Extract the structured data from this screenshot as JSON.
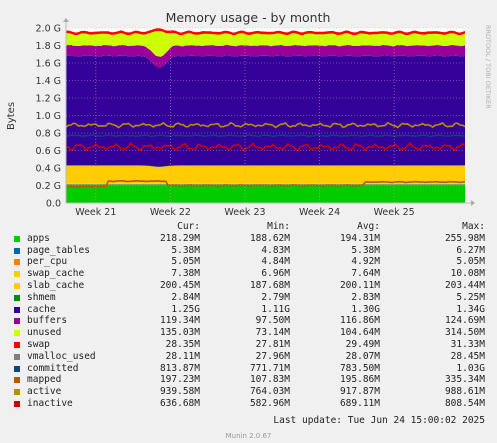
{
  "chart_data": {
    "type": "area",
    "title": "Memory usage - by month",
    "ylabel": "Bytes",
    "side_label": "RRDTOOL / TOBI OETIKER",
    "ylim": [
      0,
      2.0
    ],
    "y_unit": "G",
    "y_ticks": [
      "0.0",
      "0.2 G",
      "0.4 G",
      "0.6 G",
      "0.8 G",
      "1.0 G",
      "1.2 G",
      "1.4 G",
      "1.6 G",
      "1.8 G",
      "2.0 G"
    ],
    "x_ticks": [
      "Week 21",
      "Week 22",
      "Week 23",
      "Week 24",
      "Week 25"
    ],
    "grid": true,
    "stacked_series_gb": [
      {
        "name": "apps",
        "color": "#00cc00",
        "value": 0.21
      },
      {
        "name": "page_tables",
        "color": "#0066b3",
        "value": 0.005
      },
      {
        "name": "per_cpu",
        "color": "#ff8000",
        "value": 0.005
      },
      {
        "name": "swap_cache",
        "color": "#ffcc00",
        "value": 0.007
      },
      {
        "name": "slab_cache",
        "color": "#ffcc00",
        "value": 0.2
      },
      {
        "name": "shmem",
        "color": "#008f00",
        "value": 0.003
      },
      {
        "name": "cache",
        "color": "#330099",
        "value": 1.25
      },
      {
        "name": "buffers",
        "color": "#990099",
        "value": 0.12
      },
      {
        "name": "unused",
        "color": "#ccff00",
        "value": 0.13
      },
      {
        "name": "swap",
        "color": "#ff0000",
        "value": 0.03
      }
    ],
    "line_series_gb": [
      {
        "name": "committed",
        "color": "#00487d",
        "value": 0.81
      },
      {
        "name": "mapped",
        "color": "#b35a00",
        "value": 0.2
      },
      {
        "name": "active",
        "color": "#b38f00",
        "value": 0.92
      },
      {
        "name": "inactive",
        "color": "#cc0000",
        "value": 0.64
      }
    ],
    "events": {
      "unused_dip": {
        "x_week": 21.85,
        "unused_gb": 0.3,
        "slab_gb": 0.15
      },
      "mapped_steps_at_week": [
        21.15,
        21.95,
        24.6
      ]
    }
  },
  "legend": {
    "headers": [
      "Cur:",
      "Min:",
      "Avg:",
      "Max:"
    ],
    "rows": [
      {
        "name": "apps",
        "color": "#00cc00",
        "cur": "218.29M",
        "min": "188.62M",
        "avg": "194.31M",
        "max": "255.98M"
      },
      {
        "name": "page_tables",
        "color": "#0066b3",
        "cur": "5.38M",
        "min": "4.83M",
        "avg": "5.38M",
        "max": "6.27M"
      },
      {
        "name": "per_cpu",
        "color": "#ff8000",
        "cur": "5.05M",
        "min": "4.84M",
        "avg": "4.92M",
        "max": "5.05M"
      },
      {
        "name": "swap_cache",
        "color": "#ffcc00",
        "cur": "7.38M",
        "min": "6.96M",
        "avg": "7.64M",
        "max": "10.08M"
      },
      {
        "name": "slab_cache",
        "color": "#ffcc00",
        "cur": "200.45M",
        "min": "187.68M",
        "avg": "200.11M",
        "max": "203.44M"
      },
      {
        "name": "shmem",
        "color": "#008f00",
        "cur": "2.84M",
        "min": "2.79M",
        "avg": "2.83M",
        "max": "5.25M"
      },
      {
        "name": "cache",
        "color": "#330099",
        "cur": "1.25G",
        "min": "1.11G",
        "avg": "1.30G",
        "max": "1.34G"
      },
      {
        "name": "buffers",
        "color": "#990099",
        "cur": "119.34M",
        "min": "97.50M",
        "avg": "116.86M",
        "max": "124.69M"
      },
      {
        "name": "unused",
        "color": "#ccff00",
        "cur": "135.03M",
        "min": "73.14M",
        "avg": "104.64M",
        "max": "314.50M"
      },
      {
        "name": "swap",
        "color": "#ff0000",
        "cur": "28.35M",
        "min": "27.81M",
        "avg": "29.49M",
        "max": "31.33M"
      },
      {
        "name": "vmalloc_used",
        "color": "#808080",
        "cur": "28.11M",
        "min": "27.96M",
        "avg": "28.07M",
        "max": "28.45M"
      },
      {
        "name": "committed",
        "color": "#00487d",
        "cur": "813.87M",
        "min": "771.71M",
        "avg": "783.50M",
        "max": "1.03G"
      },
      {
        "name": "mapped",
        "color": "#b35a00",
        "cur": "197.23M",
        "min": "107.83M",
        "avg": "195.86M",
        "max": "335.34M"
      },
      {
        "name": "active",
        "color": "#b38f00",
        "cur": "939.58M",
        "min": "764.03M",
        "avg": "917.87M",
        "max": "988.61M"
      },
      {
        "name": "inactive",
        "color": "#cc0000",
        "cur": "636.68M",
        "min": "582.96M",
        "avg": "689.11M",
        "max": "808.54M"
      }
    ]
  },
  "footer": {
    "last_update": "Last update: Tue Jun 24 15:00:02 2025",
    "version": "Munin 2.0.67"
  }
}
